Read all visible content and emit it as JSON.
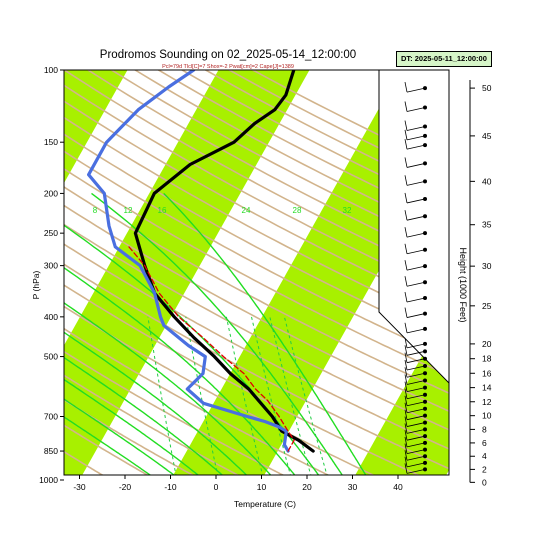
{
  "chart_data": {
    "type": "line",
    "title": "Prodromos Sounding on 02_2025-05-14_12:00:00",
    "subtitle": "Pcl=79d Tlcl[C]=7 Shox=-2 Pwat[cm]=2 Cape[J]=1389",
    "badge": "DT: 2025-05-11_12:00:00",
    "xlabel": "Temperature (C)",
    "ylabel": "P (hPa)",
    "ylabel_right": "Height (1000 Feet)",
    "xlim": [
      -33,
      51
    ],
    "ylim": [
      1020,
      100
    ],
    "y_scale": "log",
    "x_ticks": [
      "-30",
      "-20",
      "-10",
      "0",
      "10",
      "20",
      "30",
      "40"
    ],
    "y_ticks": [
      "100",
      "150",
      "200",
      "250",
      "300",
      "400",
      "500",
      "700",
      "850",
      "1000"
    ],
    "height_ticks": [
      "0",
      "2",
      "4",
      "6",
      "8",
      "10",
      "12",
      "14",
      "16",
      "18",
      "20",
      "25",
      "30",
      "35",
      "40",
      "45",
      "50"
    ],
    "mixing_ratio_labels": [
      "8",
      "12",
      "16",
      "24",
      "28",
      "32"
    ],
    "dry_adiabat_labels": [
      "30",
      "20",
      "10",
      "0",
      "-10",
      "-20",
      "-30",
      "80",
      "90",
      "100",
      "120",
      "130",
      "140",
      "150",
      "160"
    ],
    "colors": {
      "temperature": "#000000",
      "dewpoint": "#4a6fe0",
      "parcel": "#e00000",
      "moist_adiabat": "#22dd22",
      "mixing_ratio": "#22cc44",
      "dry_adiabat": "#d2b48c",
      "band": "#a8f000",
      "badge_bg": "#d6f5c8"
    },
    "series": [
      {
        "points": [
          [
            20.5,
            850
          ],
          [
            17,
            800
          ],
          [
            13,
            760
          ],
          [
            10.5,
            700
          ],
          [
            7,
            640
          ],
          [
            4.5,
            600
          ],
          [
            0,
            550
          ],
          [
            -4,
            500
          ],
          [
            -9,
            450
          ],
          [
            -14,
            400
          ],
          [
            -19,
            350
          ],
          [
            -22,
            300
          ],
          [
            -25,
            250
          ],
          [
            -22,
            200
          ],
          [
            -15,
            170
          ],
          [
            -6,
            150
          ],
          [
            -2,
            135
          ],
          [
            2,
            125
          ],
          [
            4,
            115
          ],
          [
            5,
            100
          ]
        ]
      },
      {
        "points": [
          [
            15,
            850
          ],
          [
            14,
            820
          ],
          [
            14,
            760
          ],
          [
            12,
            740
          ],
          [
            9,
            720
          ],
          [
            5,
            700
          ],
          [
            -5,
            650
          ],
          [
            -9,
            600
          ],
          [
            -6,
            550
          ],
          [
            -6,
            500
          ],
          [
            -10,
            470
          ],
          [
            -16,
            420
          ],
          [
            -17,
            400
          ],
          [
            -19,
            350
          ],
          [
            -23,
            300
          ],
          [
            -29,
            270
          ],
          [
            -31,
            240
          ],
          [
            -33,
            200
          ],
          [
            -37,
            180
          ],
          [
            -34,
            150
          ],
          [
            -28,
            125
          ],
          [
            -22,
            110
          ],
          [
            -17,
            100
          ]
        ]
      },
      {
        "points": [
          [
            15,
            850
          ],
          [
            16,
            800
          ],
          [
            14,
            750
          ],
          [
            12,
            700
          ],
          [
            9,
            640
          ],
          [
            6,
            600
          ],
          [
            3,
            550
          ],
          [
            -2,
            500
          ],
          [
            -7,
            450
          ],
          [
            -13,
            400
          ],
          [
            -18,
            350
          ],
          [
            -22,
            300
          ],
          [
            -26,
            270
          ]
        ]
      }
    ],
    "barb_heights_kft": [
      0,
      1,
      2,
      3,
      4,
      5,
      6,
      7,
      8,
      9,
      10,
      11,
      12,
      13,
      14,
      15,
      16,
      17,
      18,
      19,
      20,
      22,
      24,
      26,
      28,
      30,
      32,
      34,
      36,
      38,
      40,
      42,
      44,
      45,
      46,
      48,
      50
    ]
  }
}
